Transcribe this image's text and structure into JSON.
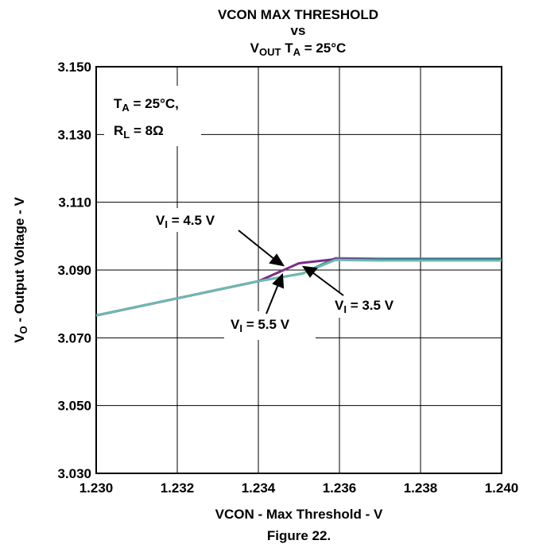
{
  "chart_data": {
    "type": "line",
    "title_line1": "VCON MAX THRESHOLD",
    "title_line2": "vs",
    "title_line3_main": "V",
    "title_line3_sub": "OUT",
    "title_line3_mid": " T",
    "title_line3_sub2": "A",
    "title_line3_rest": " = 25°C",
    "xlabel": "VCON - Max Threshold - V",
    "ylabel_main": "V",
    "ylabel_sub": "O",
    "ylabel_rest": " - Output Voltage - V",
    "caption": "Figure 22.",
    "xlim": [
      1.23,
      1.24
    ],
    "ylim": [
      3.03,
      3.15
    ],
    "x_ticks": [
      "1.230",
      "1.232",
      "1.234",
      "1.236",
      "1.238",
      "1.240"
    ],
    "y_ticks": [
      "3.150",
      "3.130",
      "3.110",
      "3.090",
      "3.070",
      "3.050",
      "3.030"
    ],
    "x_tick_values": [
      1.23,
      1.232,
      1.234,
      1.236,
      1.238,
      1.24
    ],
    "y_tick_values": [
      3.15,
      3.13,
      3.11,
      3.09,
      3.07,
      3.05,
      3.03
    ],
    "grid": true,
    "conditions": {
      "ta_main": "T",
      "ta_sub": "A",
      "ta_rest": " = 25°C,",
      "rl_main": "R",
      "rl_sub": "L",
      "rl_rest": " = 8Ω"
    },
    "series": [
      {
        "label_main": "V",
        "label_sub": "I",
        "label_rest": " = 5.5 V",
        "color": "#2a8a8a",
        "x": [
          1.23,
          1.234,
          1.2351,
          1.2359,
          1.237,
          1.24
        ],
        "y": [
          3.0766,
          3.0867,
          3.089,
          3.0935,
          3.0933,
          3.0933
        ]
      },
      {
        "label_main": "V",
        "label_sub": "I",
        "label_rest": " = 4.5 V",
        "color": "#7b2d86",
        "x": [
          1.23,
          1.234,
          1.235,
          1.2359,
          1.237,
          1.24
        ],
        "y": [
          3.0766,
          3.0867,
          3.092,
          3.0932,
          3.093,
          3.093
        ]
      },
      {
        "label_main": "V",
        "label_sub": "I",
        "label_rest": " = 3.5 V",
        "color": "#6fb8b0",
        "x": [
          1.23,
          1.234,
          1.2351,
          1.2359,
          1.237,
          1.24
        ],
        "y": [
          3.0766,
          3.0867,
          3.089,
          3.093,
          3.0928,
          3.0928
        ]
      }
    ]
  }
}
